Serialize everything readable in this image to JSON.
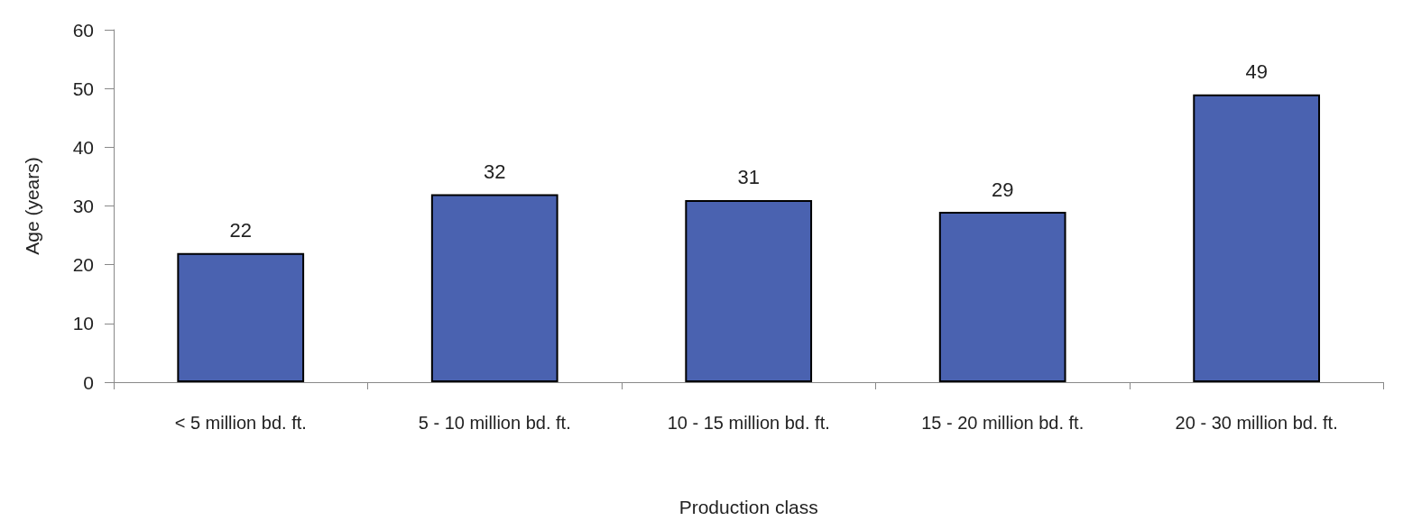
{
  "chart_data": {
    "type": "bar",
    "xlabel": "Production class",
    "ylabel": "Age (years)",
    "categories": [
      "< 5 million bd. ft.",
      "5 - 10 million bd. ft.",
      "10 - 15 million bd. ft.",
      "15 - 20 million bd. ft.",
      "20 - 30 million bd. ft."
    ],
    "values": [
      22,
      32,
      31,
      29,
      49
    ],
    "color": "#4a62b0",
    "ylim": [
      0,
      60
    ],
    "yticks": [
      0,
      10,
      20,
      30,
      40,
      50,
      60
    ],
    "grid": false,
    "data_labels": true
  }
}
